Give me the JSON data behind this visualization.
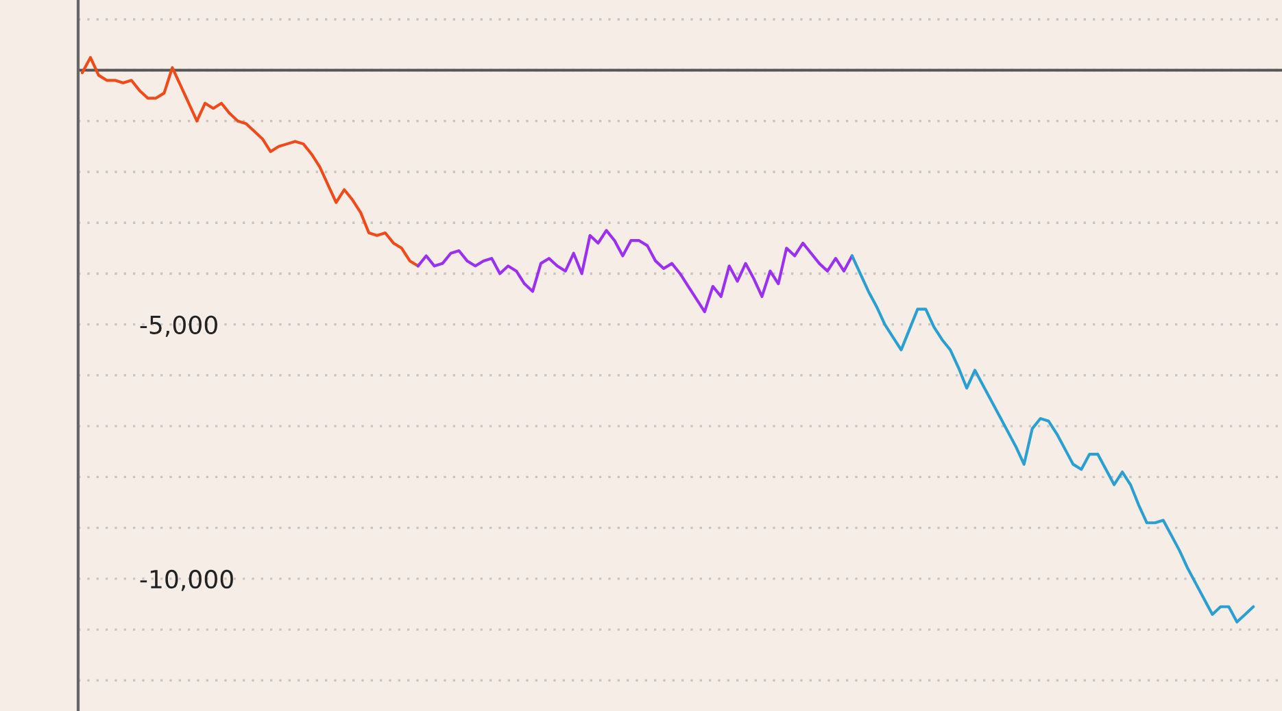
{
  "chart_data": {
    "type": "line",
    "categories": [
      null,
      null,
      null,
      null,
      null,
      null,
      null,
      null,
      null,
      null,
      null,
      null,
      null,
      null,
      null,
      null,
      null,
      null,
      null,
      null,
      null,
      null,
      null,
      null,
      null,
      null,
      null,
      null,
      null,
      null,
      null,
      null,
      null,
      null,
      null,
      null,
      null,
      null,
      null,
      null,
      null,
      null,
      null,
      null,
      null,
      null,
      null,
      null,
      null,
      null,
      null,
      null,
      null,
      null,
      null,
      null,
      null,
      null,
      null,
      null,
      null,
      null,
      null,
      null,
      null,
      null,
      null,
      null,
      null,
      null,
      null,
      null,
      null,
      null,
      null,
      null,
      null,
      null,
      null,
      null,
      null,
      null,
      null,
      null,
      null,
      null,
      null,
      null,
      null,
      null,
      null,
      null,
      null,
      null,
      null,
      null,
      null,
      null,
      null,
      null,
      null,
      null,
      null,
      null,
      null,
      null,
      null,
      null,
      null,
      null,
      null,
      null,
      null,
      null,
      null,
      null,
      null,
      null,
      null,
      null,
      null,
      null,
      null,
      null,
      null,
      null,
      null,
      null,
      null,
      null,
      null,
      null,
      null,
      null,
      null,
      null,
      null,
      null,
      null,
      null,
      null,
      null,
      null,
      null,
      null,
      null,
      null
    ],
    "series": [
      {
        "color": "#f04a1a",
        "values": [
          -50,
          250,
          -100,
          -200,
          -200,
          -250,
          -200,
          -400,
          -550,
          -550,
          -450,
          50,
          -300,
          -650,
          -1000,
          -650,
          -750,
          -650,
          -850,
          -1000,
          -1050,
          -1200,
          -1350,
          -1600,
          -1500,
          -1450,
          -1400,
          -1450,
          -1650,
          -1900,
          -2250,
          -2600,
          -2350,
          -2550,
          -2800,
          -3200,
          -3250,
          -3200,
          -3400,
          -3500,
          -3750,
          -3850,
          null,
          null,
          null,
          null,
          null,
          null,
          null,
          null,
          null,
          null,
          null,
          null,
          null,
          null,
          null,
          null,
          null,
          null,
          null,
          null,
          null,
          null,
          null,
          null,
          null,
          null,
          null,
          null,
          null,
          null,
          null,
          null,
          null,
          null,
          null,
          null,
          null,
          null,
          null,
          null,
          null,
          null,
          null,
          null,
          null,
          null,
          null,
          null,
          null,
          null,
          null,
          null,
          null,
          null,
          null,
          null,
          null,
          null,
          null,
          null,
          null,
          null,
          null,
          null,
          null,
          null,
          null,
          null,
          null,
          null,
          null,
          null,
          null,
          null,
          null,
          null,
          null,
          null,
          null,
          null,
          null,
          null,
          null,
          null,
          null,
          null,
          null,
          null,
          null,
          null,
          null,
          null,
          null,
          null,
          null,
          null,
          null,
          null,
          null,
          null,
          null,
          null,
          null,
          null,
          null
        ]
      },
      {
        "color": "#9b30f0",
        "values": [
          null,
          null,
          null,
          null,
          null,
          null,
          null,
          null,
          null,
          null,
          null,
          null,
          null,
          null,
          null,
          null,
          null,
          null,
          null,
          null,
          null,
          null,
          null,
          null,
          null,
          null,
          null,
          null,
          null,
          null,
          null,
          null,
          null,
          null,
          null,
          null,
          null,
          null,
          null,
          null,
          null,
          -3850,
          -3650,
          -3850,
          -3800,
          -3600,
          -3550,
          -3750,
          -3850,
          -3750,
          -3700,
          -4000,
          -3850,
          -3950,
          -4200,
          -4350,
          -3800,
          -3700,
          -3850,
          -3950,
          -3600,
          -4000,
          -3250,
          -3400,
          -3150,
          -3350,
          -3650,
          -3350,
          -3350,
          -3450,
          -3750,
          -3900,
          -3800,
          -4000,
          -4250,
          -4500,
          -4750,
          -4250,
          -4450,
          -3850,
          -4150,
          -3800,
          -4100,
          -4450,
          -3950,
          -4200,
          -3500,
          -3650,
          -3400,
          -3600,
          -3800,
          -3950,
          -3700,
          -3950,
          -3650,
          null,
          null,
          null,
          null,
          null,
          null,
          null,
          null,
          null,
          null,
          null,
          null,
          null,
          null,
          null,
          null,
          null,
          null,
          null,
          null,
          null,
          null,
          null,
          null,
          null,
          null,
          null,
          null,
          null,
          null,
          null,
          null,
          null,
          null,
          null,
          null,
          null,
          null,
          null,
          null,
          null,
          null,
          null,
          null,
          null,
          null,
          null,
          null,
          null,
          null,
          null,
          null
        ]
      },
      {
        "color": "#2a9fd0",
        "values": [
          null,
          null,
          null,
          null,
          null,
          null,
          null,
          null,
          null,
          null,
          null,
          null,
          null,
          null,
          null,
          null,
          null,
          null,
          null,
          null,
          null,
          null,
          null,
          null,
          null,
          null,
          null,
          null,
          null,
          null,
          null,
          null,
          null,
          null,
          null,
          null,
          null,
          null,
          null,
          null,
          null,
          null,
          null,
          null,
          null,
          null,
          null,
          null,
          null,
          null,
          null,
          null,
          null,
          null,
          null,
          null,
          null,
          null,
          null,
          null,
          null,
          null,
          null,
          null,
          null,
          null,
          null,
          null,
          null,
          null,
          null,
          null,
          null,
          null,
          null,
          null,
          null,
          null,
          null,
          null,
          null,
          null,
          null,
          null,
          null,
          null,
          null,
          null,
          null,
          null,
          null,
          null,
          null,
          null,
          -3650,
          -4000,
          -4350,
          -4650,
          -5000,
          -5250,
          -5500,
          -5100,
          -4700,
          -4700,
          -5050,
          -5300,
          -5500,
          -5850,
          -6250,
          -5900,
          -6200,
          -6500,
          -6800,
          -7100,
          -7400,
          -7750,
          -7050,
          -6850,
          -6900,
          -7150,
          -7450,
          -7750,
          -7850,
          -7550,
          -7550,
          -7850,
          -8150,
          -7900,
          -8150,
          -8550,
          -8900,
          -8900,
          -8850,
          -9150,
          -9450,
          -9800,
          -10100,
          -10400,
          -10700,
          -10550,
          -10550,
          -10850,
          -10700,
          -10550,
          null,
          null,
          null
        ]
      }
    ],
    "ylim": [
      -12600,
      1380
    ],
    "yticks": [
      {
        "value": 1000,
        "label": null
      },
      {
        "value": 0,
        "label": null
      },
      {
        "value": -1000,
        "label": null
      },
      {
        "value": -2000,
        "label": null
      },
      {
        "value": -3000,
        "label": null
      },
      {
        "value": -4000,
        "label": null
      },
      {
        "value": -5000,
        "label": "-5,000"
      },
      {
        "value": -6000,
        "label": null
      },
      {
        "value": -7000,
        "label": null
      },
      {
        "value": -8000,
        "label": null
      },
      {
        "value": -9000,
        "label": null
      },
      {
        "value": -10000,
        "label": "-10,000"
      },
      {
        "value": -11000,
        "label": null
      },
      {
        "value": -12000,
        "label": null
      }
    ],
    "ref_lines": [
      {
        "axis": "y",
        "value": 0,
        "color": "#555555"
      }
    ],
    "grid": "y",
    "tick_labels": "y",
    "legend": false,
    "marker": "none",
    "line_style": "solid"
  }
}
